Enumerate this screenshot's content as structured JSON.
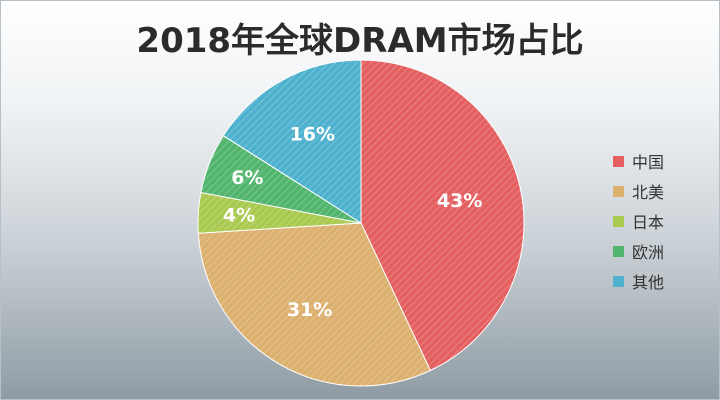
{
  "chart_data": {
    "type": "pie",
    "title": "2018年全球DRAM市场占比",
    "categories": [
      "中国",
      "北美",
      "日本",
      "欧洲",
      "其他"
    ],
    "values": [
      43,
      31,
      4,
      6,
      16
    ],
    "labels": [
      "43%",
      "31%",
      "4%",
      "6%",
      "16%"
    ],
    "colors": [
      "#e45f5f",
      "#dcb06e",
      "#a9c94f",
      "#52b56e",
      "#4eb2cf"
    ],
    "legend_position": "right"
  }
}
